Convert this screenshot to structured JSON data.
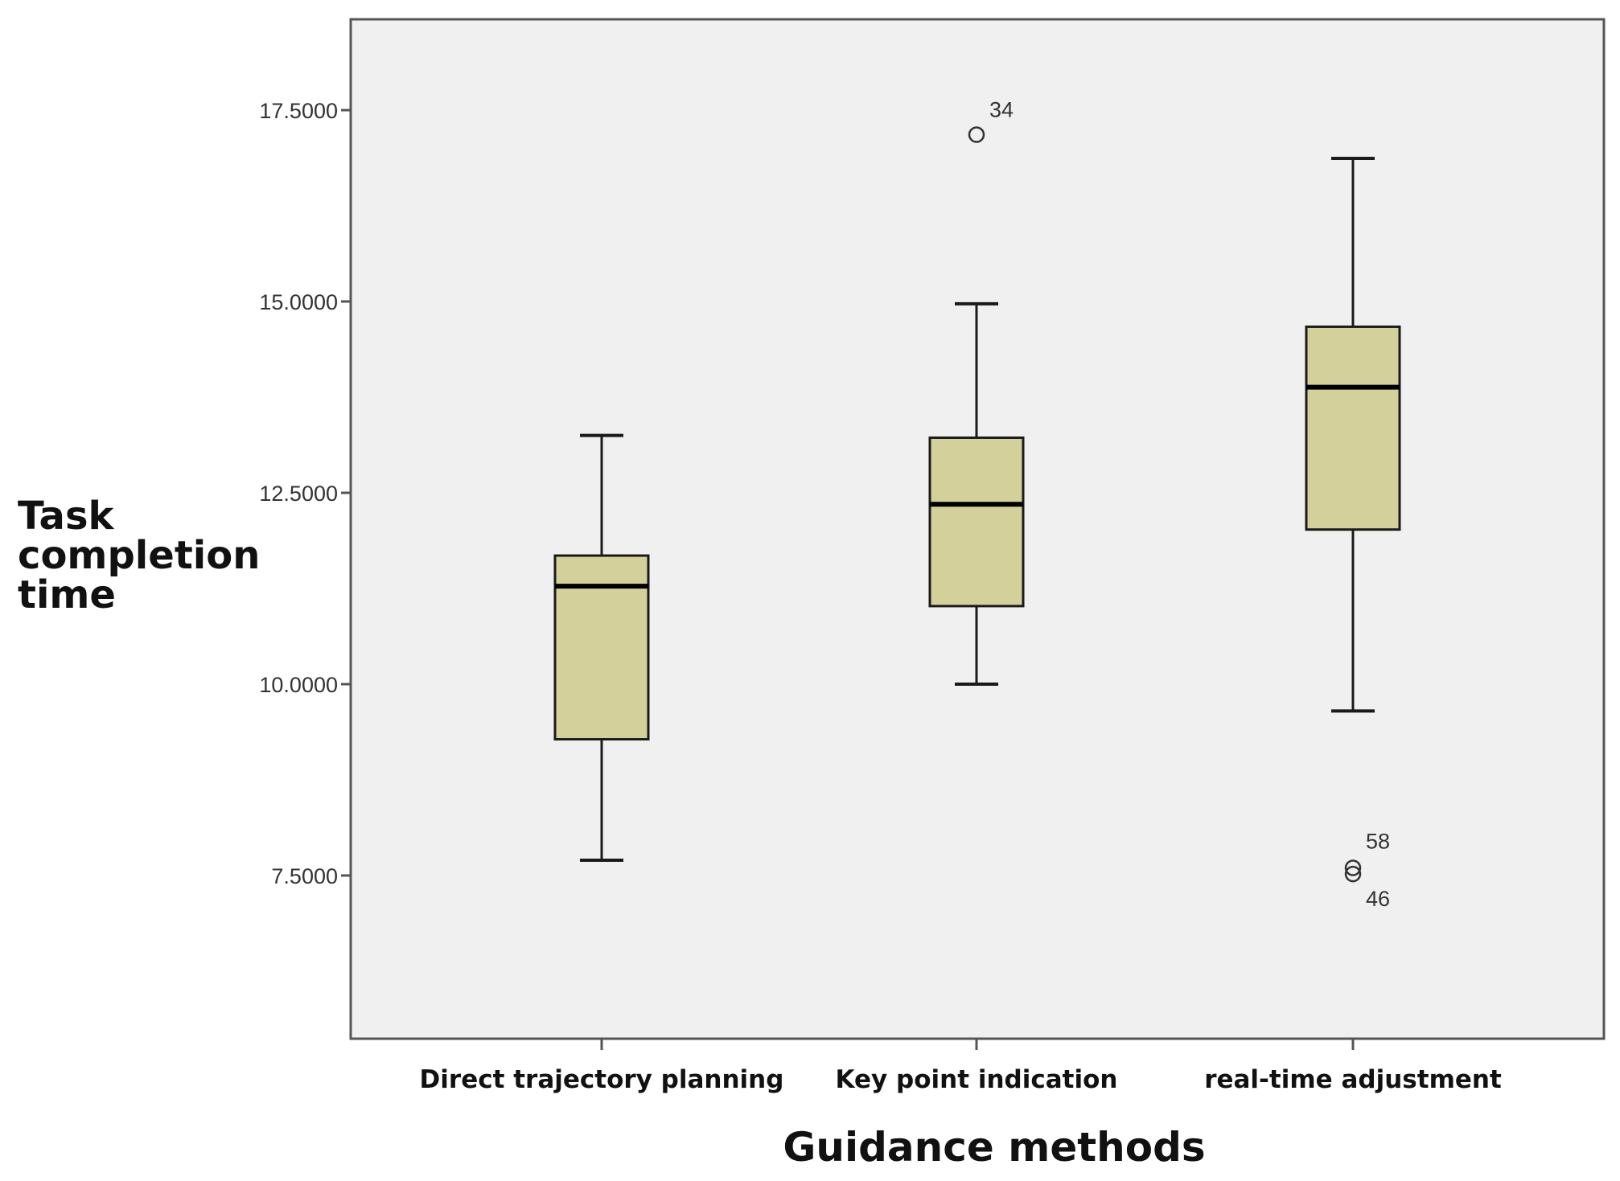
{
  "chart_data": {
    "type": "boxplot",
    "title": "",
    "xlabel": "Guidance methods",
    "ylabel_lines": [
      "Task",
      "completion",
      "time"
    ],
    "ylim": [
      5.4,
      18.7
    ],
    "yticks": [
      7.5,
      10.0,
      12.5,
      15.0,
      17.5
    ],
    "ytick_labels": [
      "7.5000",
      "10.0000",
      "12.5000",
      "15.0000",
      "17.5000"
    ],
    "grid": false,
    "colors": {
      "plot_background": "#f0f0f0",
      "box_fill": "#d4d09c",
      "line": "#1a1a1a"
    },
    "categories": [
      "Direct trajectory planning",
      "Key point indication",
      "real-time adjustment"
    ],
    "series": [
      {
        "name": "Direct trajectory planning",
        "whisker_low": 7.7,
        "q1": 9.28,
        "median": 11.28,
        "q3": 11.68,
        "whisker_high": 13.25,
        "outliers": []
      },
      {
        "name": "Key point indication",
        "whisker_low": 10.0,
        "q1": 11.02,
        "median": 12.35,
        "q3": 13.22,
        "whisker_high": 14.97,
        "outliers": [
          {
            "value": 17.18,
            "label": "34"
          }
        ]
      },
      {
        "name": "real-time adjustment",
        "whisker_low": 9.65,
        "q1": 12.02,
        "median": 13.88,
        "q3": 14.67,
        "whisker_high": 16.87,
        "outliers": [
          {
            "value": 7.6,
            "label": "58"
          },
          {
            "value": 7.52,
            "label": "46"
          }
        ]
      }
    ]
  }
}
